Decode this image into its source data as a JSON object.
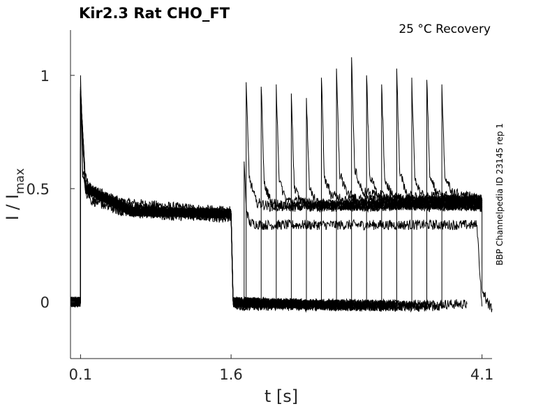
{
  "chart_data": {
    "type": "line",
    "title": "Kir2.3  Rat  CHO_FT",
    "annotation": "25 °C  Recovery",
    "side_label": "BBP Channelpedia ID 23145 rep 1",
    "xlabel": "t [s]",
    "ylabel_main": "I / I",
    "ylabel_sub": "max",
    "x_ticks": [
      "0.1",
      "1.6",
      "4.1"
    ],
    "y_ticks": [
      "0",
      "0.5",
      "1"
    ],
    "xlim": [
      0.0,
      4.2
    ],
    "ylim": [
      -0.25,
      1.2
    ],
    "series": [
      {
        "x": [
          0.0,
          0.08,
          0.1,
          0.1,
          0.12,
          0.2,
          0.5,
          1.0,
          1.55,
          1.6,
          1.62,
          1.7,
          1.9,
          1.92,
          1.95,
          2.0,
          2.2,
          2.5,
          3.0,
          3.5,
          3.95
        ],
        "y": [
          0.0,
          0.0,
          0.0,
          1.0,
          0.58,
          0.5,
          0.44,
          0.42,
          0.4,
          0.4,
          0.0,
          -0.02,
          -0.01,
          -0.01,
          -0.01,
          -0.01,
          -0.01,
          -0.01,
          -0.01,
          -0.01,
          -0.01
        ]
      },
      {
        "x": [
          0.0,
          0.08,
          0.1,
          0.1,
          0.12,
          0.2,
          0.5,
          1.0,
          1.55,
          1.6,
          1.62,
          1.7,
          1.73,
          1.73,
          1.75,
          1.78,
          1.9,
          2.2,
          2.5,
          3.0,
          3.5,
          4.0,
          4.05,
          4.1
        ],
        "y": [
          0.0,
          0.0,
          0.0,
          0.95,
          0.55,
          0.45,
          0.4,
          0.39,
          0.37,
          0.38,
          0.0,
          -0.02,
          -0.02,
          0.62,
          0.42,
          0.35,
          0.34,
          0.34,
          0.34,
          0.34,
          0.34,
          0.34,
          0.34,
          -0.02
        ]
      },
      {
        "x": [
          0.0,
          0.1,
          0.1,
          0.15,
          0.5,
          1.0,
          1.6,
          1.62,
          1.75,
          1.75,
          1.78,
          1.85,
          2.0,
          2.5,
          3.0,
          3.5,
          4.1
        ],
        "y": [
          0.0,
          0.0,
          0.9,
          0.48,
          0.4,
          0.38,
          0.38,
          0.0,
          -0.02,
          0.97,
          0.55,
          0.44,
          0.42,
          0.42,
          0.43,
          0.43,
          0.42
        ]
      },
      {
        "x": [
          0.0,
          0.1,
          0.1,
          0.15,
          0.6,
          1.2,
          1.6,
          1.62,
          1.9,
          1.9,
          1.93,
          2.0,
          2.2,
          2.6,
          3.0,
          3.6,
          4.1
        ],
        "y": [
          0.0,
          0.0,
          0.92,
          0.5,
          0.42,
          0.4,
          0.38,
          0.0,
          -0.02,
          0.95,
          0.52,
          0.44,
          0.42,
          0.43,
          0.42,
          0.43,
          0.42
        ]
      },
      {
        "x": [
          0.0,
          0.1,
          0.1,
          0.15,
          0.6,
          1.6,
          1.62,
          2.05,
          2.05,
          2.08,
          2.15,
          2.4,
          2.8,
          3.2,
          3.6,
          4.1
        ],
        "y": [
          0.0,
          0.0,
          0.93,
          0.52,
          0.4,
          0.39,
          0.0,
          -0.02,
          0.96,
          0.53,
          0.45,
          0.43,
          0.43,
          0.43,
          0.42,
          0.43
        ]
      },
      {
        "x": [
          0.0,
          0.1,
          0.1,
          0.15,
          0.6,
          1.6,
          1.62,
          2.2,
          2.2,
          2.23,
          2.3,
          2.6,
          3.0,
          3.4,
          3.8,
          4.1
        ],
        "y": [
          0.0,
          0.0,
          0.94,
          0.5,
          0.41,
          0.39,
          0.0,
          -0.02,
          0.92,
          0.5,
          0.44,
          0.42,
          0.42,
          0.43,
          0.43,
          0.43
        ]
      },
      {
        "x": [
          0.0,
          0.1,
          0.1,
          0.15,
          0.6,
          1.6,
          1.62,
          2.35,
          2.35,
          2.38,
          2.45,
          2.7,
          3.1,
          3.6,
          4.1
        ],
        "y": [
          0.0,
          0.0,
          0.95,
          0.5,
          0.4,
          0.39,
          0.0,
          -0.02,
          0.9,
          0.5,
          0.44,
          0.42,
          0.43,
          0.43,
          0.42
        ]
      },
      {
        "x": [
          0.0,
          0.1,
          0.1,
          0.15,
          0.6,
          1.6,
          1.62,
          2.5,
          2.5,
          2.53,
          2.6,
          2.8,
          3.2,
          3.6,
          4.1
        ],
        "y": [
          0.0,
          0.0,
          0.94,
          0.5,
          0.4,
          0.39,
          0.0,
          -0.02,
          0.99,
          0.55,
          0.47,
          0.45,
          0.44,
          0.44,
          0.44
        ]
      },
      {
        "x": [
          0.0,
          0.1,
          0.1,
          0.15,
          0.6,
          1.6,
          1.62,
          2.65,
          2.65,
          2.68,
          2.75,
          2.9,
          3.3,
          3.7,
          4.1
        ],
        "y": [
          0.0,
          0.0,
          0.93,
          0.5,
          0.4,
          0.39,
          0.0,
          -0.02,
          1.03,
          0.57,
          0.48,
          0.45,
          0.45,
          0.44,
          0.44
        ]
      },
      {
        "x": [
          0.0,
          0.1,
          0.1,
          0.15,
          0.6,
          1.6,
          1.62,
          2.8,
          2.8,
          2.83,
          2.9,
          3.1,
          3.5,
          3.9,
          4.1
        ],
        "y": [
          0.0,
          0.0,
          0.93,
          0.5,
          0.4,
          0.39,
          0.0,
          -0.02,
          1.08,
          0.59,
          0.49,
          0.46,
          0.45,
          0.45,
          0.45
        ]
      },
      {
        "x": [
          0.0,
          0.1,
          0.1,
          0.15,
          0.6,
          1.6,
          1.62,
          2.95,
          2.95,
          2.98,
          3.05,
          3.2,
          3.6,
          4.1
        ],
        "y": [
          0.0,
          0.0,
          0.92,
          0.5,
          0.4,
          0.39,
          0.0,
          -0.02,
          1.0,
          0.56,
          0.48,
          0.45,
          0.45,
          0.45
        ]
      },
      {
        "x": [
          0.0,
          0.1,
          0.1,
          0.15,
          0.6,
          1.6,
          1.62,
          3.1,
          3.1,
          3.13,
          3.2,
          3.4,
          3.8,
          4.1
        ],
        "y": [
          0.0,
          0.0,
          0.92,
          0.5,
          0.4,
          0.39,
          0.0,
          -0.02,
          0.96,
          0.55,
          0.47,
          0.45,
          0.45,
          0.45
        ]
      },
      {
        "x": [
          0.0,
          0.1,
          0.1,
          0.15,
          0.6,
          1.6,
          1.62,
          3.25,
          3.25,
          3.28,
          3.35,
          3.5,
          3.8,
          4.1
        ],
        "y": [
          0.0,
          0.0,
          0.92,
          0.5,
          0.4,
          0.39,
          0.0,
          -0.02,
          1.03,
          0.57,
          0.48,
          0.45,
          0.45,
          0.45
        ]
      },
      {
        "x": [
          0.0,
          0.1,
          0.1,
          0.15,
          0.6,
          1.6,
          1.62,
          3.4,
          3.4,
          3.43,
          3.5,
          3.7,
          3.95,
          4.1
        ],
        "y": [
          0.0,
          0.0,
          0.92,
          0.5,
          0.4,
          0.39,
          0.0,
          -0.02,
          0.99,
          0.55,
          0.47,
          0.46,
          0.45,
          0.45
        ]
      },
      {
        "x": [
          0.0,
          0.1,
          0.1,
          0.15,
          0.6,
          1.6,
          1.62,
          3.55,
          3.55,
          3.58,
          3.65,
          3.8,
          4.0,
          4.1
        ],
        "y": [
          0.0,
          0.0,
          0.92,
          0.5,
          0.4,
          0.39,
          0.0,
          -0.02,
          0.98,
          0.55,
          0.48,
          0.46,
          0.46,
          0.45
        ]
      },
      {
        "x": [
          0.0,
          0.1,
          0.1,
          0.15,
          0.6,
          1.6,
          1.62,
          3.7,
          3.7,
          3.73,
          3.8,
          3.9,
          4.05,
          4.1,
          4.1,
          4.15,
          4.2
        ],
        "y": [
          0.0,
          0.0,
          0.92,
          0.5,
          0.4,
          0.39,
          0.0,
          -0.02,
          0.96,
          0.55,
          0.49,
          0.47,
          0.46,
          0.45,
          0.06,
          0.0,
          -0.03
        ]
      }
    ]
  }
}
